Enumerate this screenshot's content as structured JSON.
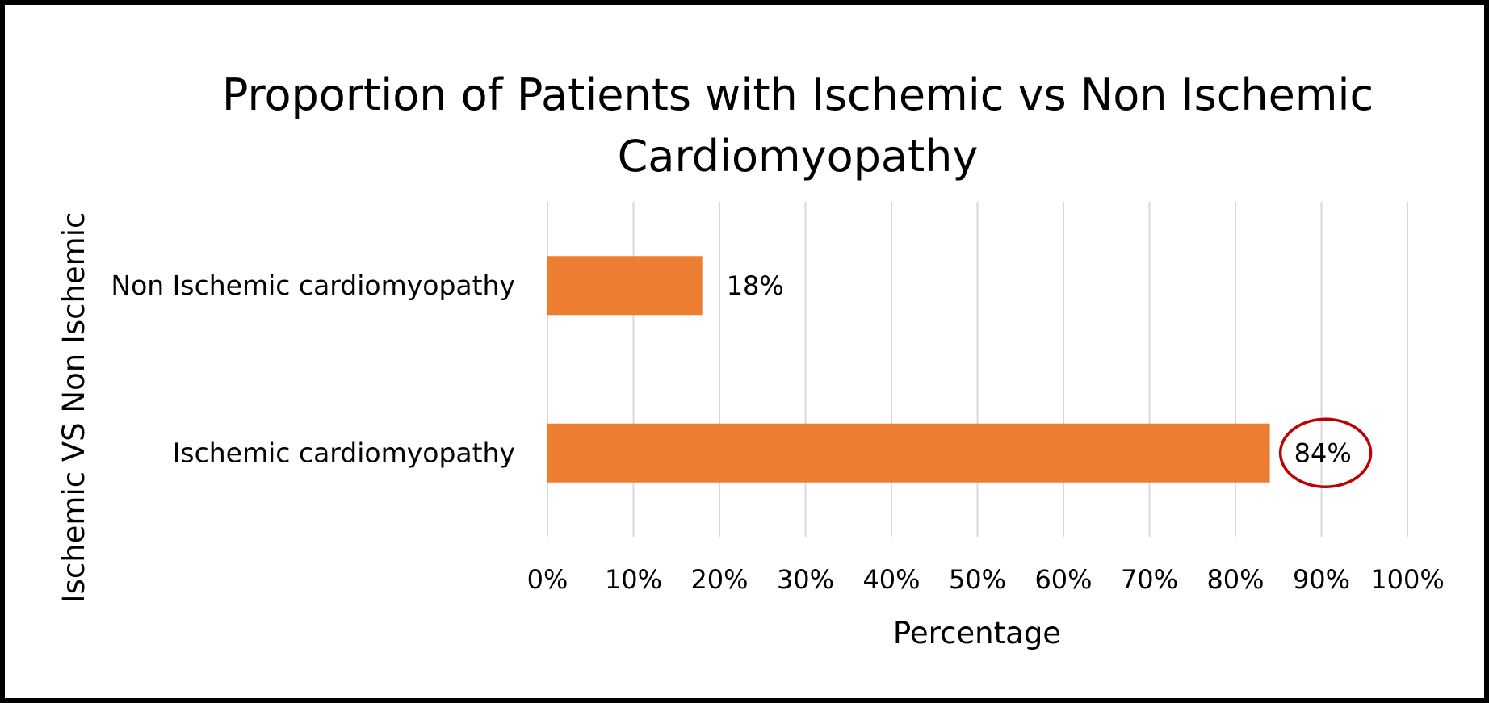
{
  "chart_data": {
    "type": "bar",
    "orientation": "horizontal",
    "title_lines": [
      "Proportion of Patients with Ischemic vs Non Ischemic",
      "Cardiomyopathy"
    ],
    "xlabel": "Percentage",
    "ylabel": "Ischemic VS Non Ischemic",
    "categories": [
      "Non Ischemic cardiomyopathy",
      "Ischemic cardiomyopathy"
    ],
    "values": [
      18,
      84
    ],
    "data_labels": [
      "18%",
      "84%"
    ],
    "xlim": [
      0,
      100
    ],
    "x_ticks": [
      0,
      10,
      20,
      30,
      40,
      50,
      60,
      70,
      80,
      90,
      100
    ],
    "x_tick_labels": [
      "0%",
      "10%",
      "20%",
      "30%",
      "40%",
      "50%",
      "60%",
      "70%",
      "80%",
      "90%",
      "100%"
    ],
    "grid": "vertical",
    "legend": "none",
    "highlighted_label": "84%",
    "colors": {
      "bar": "#ED7D31",
      "grid": "#D9D9D9",
      "highlight_circle": "#C00000",
      "text": "#000000",
      "frame": "#000000"
    }
  }
}
